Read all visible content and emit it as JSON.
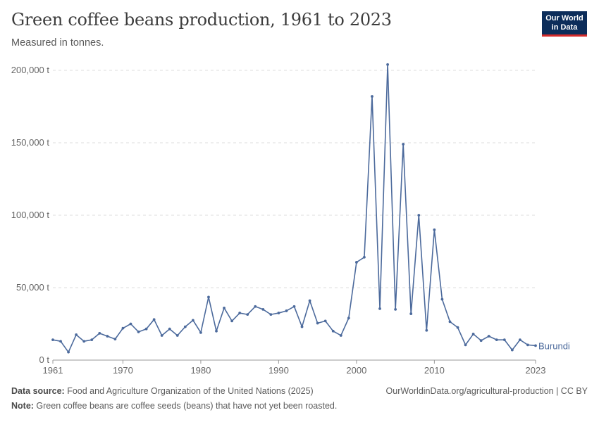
{
  "header": {
    "title": "Green coffee beans production, 1961 to 2023",
    "subtitle": "Measured in tonnes."
  },
  "logo": {
    "line1": "Our World",
    "line2": "in Data"
  },
  "footer": {
    "source_label": "Data source:",
    "source_text": " Food and Agriculture Organization of the United Nations (2025)",
    "url_license": "OurWorldinData.org/agricultural-production | CC BY",
    "note_label": "Note:",
    "note_text": " Green coffee beans are coffee seeds (beans) that have not yet been roasted."
  },
  "colors": {
    "series": "#4c6a9c",
    "grid": "#dddddd",
    "axis": "#666666"
  },
  "chart_data": {
    "type": "line",
    "title": "Green coffee beans production, 1961 to 2023",
    "subtitle": "Measured in tonnes.",
    "xlim": [
      1961,
      2023
    ],
    "ylim": [
      0,
      200000
    ],
    "x_ticks": [
      1961,
      1970,
      1980,
      1990,
      2000,
      2010,
      2023
    ],
    "y_ticks": [
      0,
      50000,
      100000,
      150000,
      200000
    ],
    "y_tick_labels": [
      "0 t",
      "50,000 t",
      "100,000 t",
      "150,000 t",
      "200,000 t"
    ],
    "grid": "horizontal dashed",
    "legend": "inline label at line end",
    "series": [
      {
        "name": "Burundi",
        "x": [
          1961,
          1962,
          1963,
          1964,
          1965,
          1966,
          1967,
          1968,
          1969,
          1970,
          1971,
          1972,
          1973,
          1974,
          1975,
          1976,
          1977,
          1978,
          1979,
          1980,
          1981,
          1982,
          1983,
          1984,
          1985,
          1986,
          1987,
          1988,
          1989,
          1990,
          1991,
          1992,
          1993,
          1994,
          1995,
          1996,
          1997,
          1998,
          1999,
          2000,
          2001,
          2002,
          2003,
          2004,
          2005,
          2006,
          2007,
          2008,
          2009,
          2010,
          2011,
          2012,
          2013,
          2014,
          2015,
          2016,
          2017,
          2018,
          2019,
          2020,
          2021,
          2022,
          2023
        ],
        "values": [
          14000,
          13000,
          5500,
          17500,
          13000,
          14000,
          18500,
          16500,
          14500,
          22000,
          25000,
          19500,
          21500,
          28000,
          17000,
          21500,
          17000,
          23000,
          27500,
          19000,
          43500,
          20000,
          36000,
          27000,
          32500,
          31500,
          37000,
          35000,
          31500,
          32500,
          34000,
          37000,
          23000,
          41000,
          25500,
          27000,
          20000,
          17000,
          29000,
          67500,
          71000,
          182000,
          35500,
          204000,
          35000,
          149000,
          32000,
          100000,
          20500,
          90000,
          42000,
          26500,
          22500,
          10500,
          18000,
          13500,
          16500,
          14000,
          14000,
          7000,
          14000,
          10500,
          10000
        ]
      }
    ]
  }
}
